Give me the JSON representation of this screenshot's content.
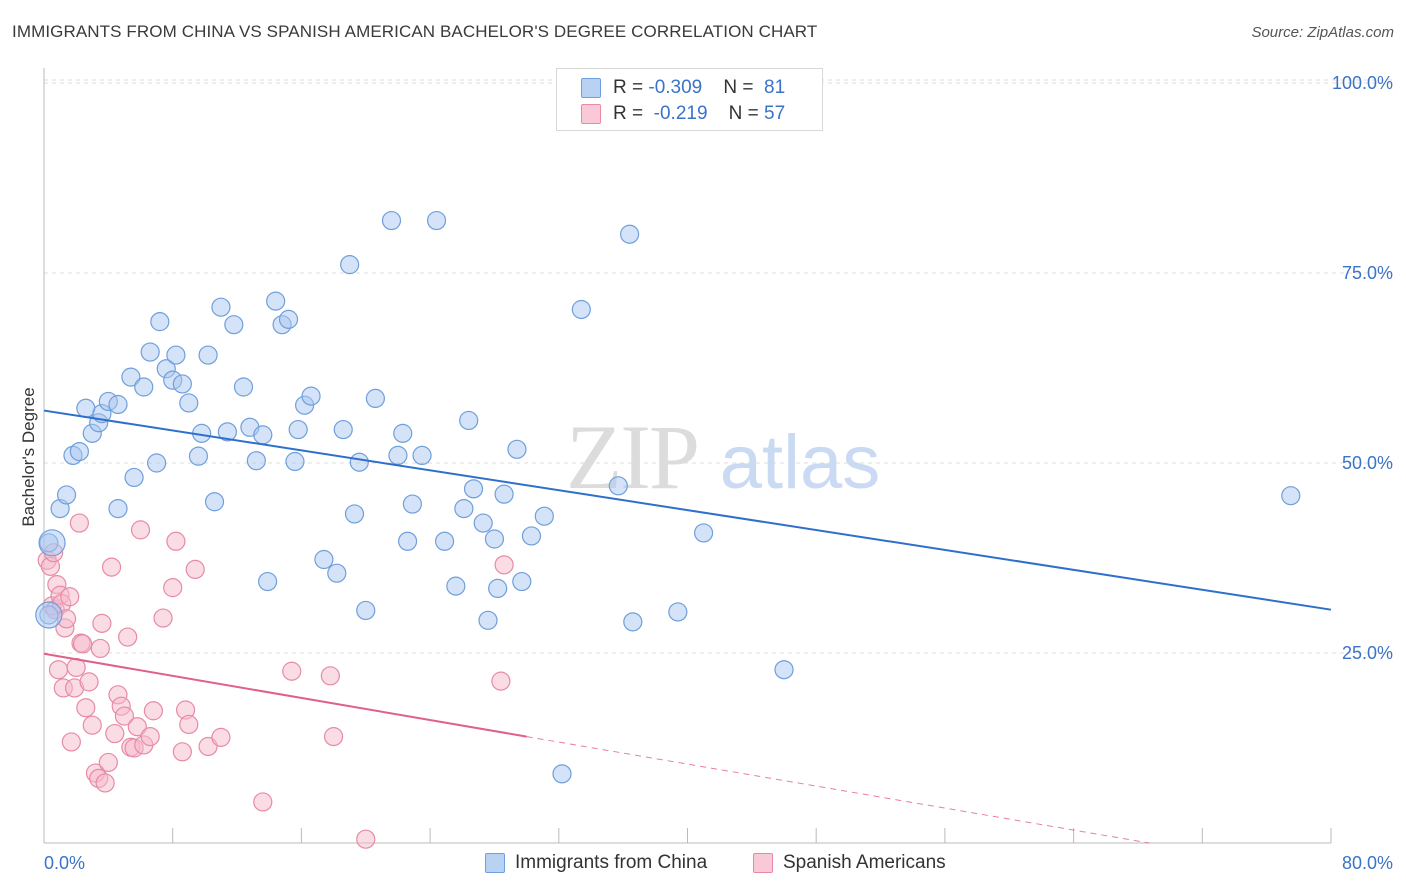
{
  "title": "IMMIGRANTS FROM CHINA VS SPANISH AMERICAN BACHELOR'S DEGREE CORRELATION CHART",
  "source": "Source: ZipAtlas.com",
  "watermark": {
    "zip": "ZIP",
    "atlas": "atlas"
  },
  "colors": {
    "blue_fill": "#a9c8f0",
    "blue_stroke": "#6f9fdc",
    "blue_line": "#2f6fcc",
    "pink_fill": "#f6b9cc",
    "pink_stroke": "#e88aa6",
    "pink_line": "#e0608a",
    "grid": "#dcdcdc",
    "axis_text": "#3a73c8"
  },
  "legend_top": {
    "row1": {
      "r_label": "R = ",
      "r_value": "-0.309",
      "n_label": "N = ",
      "n_value": "81"
    },
    "row2": {
      "r_label": "R = ",
      "r_value": "-0.219",
      "n_label": "N = ",
      "n_value": "57"
    }
  },
  "chart_data": {
    "type": "scatter",
    "title": "IMMIGRANTS FROM CHINA VS SPANISH AMERICAN BACHELOR'S DEGREE CORRELATION CHART",
    "xlabel": "",
    "ylabel": "Bachelor's Degree",
    "xlim": [
      0,
      80
    ],
    "ylim": [
      0,
      100
    ],
    "x_tick_labels": {
      "left": "0.0%",
      "right": "80.0%"
    },
    "y_tick_labels": [
      {
        "value": 100,
        "label": "100.0%"
      },
      {
        "value": 75,
        "label": "75.0%"
      },
      {
        "value": 50,
        "label": "50.0%"
      },
      {
        "value": 25,
        "label": "25.0%"
      }
    ],
    "grid": true,
    "legend_position": "bottom-center",
    "series": [
      {
        "name": "Immigrants from China",
        "color": "blue",
        "R": -0.309,
        "N": 81,
        "trend": {
          "x0": 0,
          "y0": 56.9,
          "x1": 80,
          "y1": 30.7
        },
        "points": [
          [
            0.3,
            39.5
          ],
          [
            0.3,
            30.0
          ],
          [
            1.0,
            44.0
          ],
          [
            1.4,
            45.8
          ],
          [
            1.8,
            51.0
          ],
          [
            2.2,
            51.5
          ],
          [
            2.6,
            57.2
          ],
          [
            3.0,
            53.9
          ],
          [
            3.4,
            55.3
          ],
          [
            3.6,
            56.5
          ],
          [
            4.0,
            58.1
          ],
          [
            4.6,
            57.7
          ],
          [
            4.6,
            44.0
          ],
          [
            5.4,
            61.3
          ],
          [
            5.6,
            48.1
          ],
          [
            6.2,
            60.0
          ],
          [
            6.6,
            64.6
          ],
          [
            7.0,
            50.0
          ],
          [
            7.2,
            68.6
          ],
          [
            7.6,
            62.4
          ],
          [
            8.0,
            60.9
          ],
          [
            8.2,
            64.2
          ],
          [
            8.6,
            60.4
          ],
          [
            9.0,
            57.9
          ],
          [
            9.6,
            50.9
          ],
          [
            9.8,
            53.9
          ],
          [
            10.2,
            64.2
          ],
          [
            10.6,
            44.9
          ],
          [
            11.0,
            70.5
          ],
          [
            11.4,
            54.1
          ],
          [
            11.8,
            68.2
          ],
          [
            12.4,
            60.0
          ],
          [
            12.8,
            54.7
          ],
          [
            13.2,
            50.3
          ],
          [
            13.6,
            53.7
          ],
          [
            13.9,
            34.4
          ],
          [
            14.4,
            71.3
          ],
          [
            14.8,
            68.2
          ],
          [
            15.2,
            68.9
          ],
          [
            15.6,
            50.2
          ],
          [
            15.8,
            54.4
          ],
          [
            16.2,
            57.6
          ],
          [
            16.6,
            58.8
          ],
          [
            17.4,
            37.3
          ],
          [
            18.2,
            35.5
          ],
          [
            18.6,
            54.4
          ],
          [
            19.0,
            76.1
          ],
          [
            19.3,
            43.3
          ],
          [
            19.6,
            50.1
          ],
          [
            20.0,
            30.6
          ],
          [
            20.6,
            58.5
          ],
          [
            21.6,
            81.9
          ],
          [
            22.0,
            51.0
          ],
          [
            22.3,
            53.9
          ],
          [
            22.6,
            39.7
          ],
          [
            22.9,
            44.6
          ],
          [
            23.5,
            51.0
          ],
          [
            24.4,
            81.9
          ],
          [
            24.9,
            39.7
          ],
          [
            25.6,
            33.8
          ],
          [
            26.1,
            44.0
          ],
          [
            26.4,
            55.6
          ],
          [
            26.7,
            46.6
          ],
          [
            27.3,
            42.1
          ],
          [
            27.6,
            29.3
          ],
          [
            28.0,
            40.0
          ],
          [
            28.2,
            33.5
          ],
          [
            28.6,
            45.9
          ],
          [
            29.4,
            51.8
          ],
          [
            29.7,
            34.4
          ],
          [
            30.3,
            40.4
          ],
          [
            31.1,
            43.0
          ],
          [
            32.2,
            9.1
          ],
          [
            33.4,
            70.2
          ],
          [
            35.7,
            47.0
          ],
          [
            36.4,
            80.1
          ],
          [
            36.6,
            29.1
          ],
          [
            39.4,
            30.4
          ],
          [
            41.0,
            40.8
          ],
          [
            46.0,
            22.8
          ],
          [
            77.5,
            45.7
          ]
        ]
      },
      {
        "name": "Spanish Americans",
        "color": "pink",
        "R": -0.219,
        "N": 57,
        "trend": {
          "x0": 0,
          "y0": 24.9,
          "x1": 30,
          "y1": 14.0
        },
        "trend_dashed": {
          "x0": 30,
          "y0": 14.0,
          "x1": 68.7,
          "y1": 0.0
        },
        "points": [
          [
            0.2,
            37.2
          ],
          [
            0.4,
            36.4
          ],
          [
            0.5,
            31.2
          ],
          [
            0.6,
            38.2
          ],
          [
            0.7,
            30.7
          ],
          [
            0.8,
            34.0
          ],
          [
            0.9,
            22.8
          ],
          [
            1.0,
            32.6
          ],
          [
            1.1,
            31.5
          ],
          [
            1.2,
            20.4
          ],
          [
            1.3,
            28.3
          ],
          [
            1.4,
            29.5
          ],
          [
            1.6,
            32.4
          ],
          [
            1.7,
            13.3
          ],
          [
            1.9,
            20.4
          ],
          [
            2.0,
            23.1
          ],
          [
            2.2,
            42.1
          ],
          [
            2.3,
            26.3
          ],
          [
            2.4,
            26.2
          ],
          [
            2.6,
            17.8
          ],
          [
            2.8,
            21.2
          ],
          [
            3.0,
            15.5
          ],
          [
            3.2,
            9.2
          ],
          [
            3.4,
            8.5
          ],
          [
            3.5,
            25.6
          ],
          [
            3.6,
            28.9
          ],
          [
            3.8,
            7.9
          ],
          [
            4.0,
            10.6
          ],
          [
            4.2,
            36.3
          ],
          [
            4.4,
            14.4
          ],
          [
            4.6,
            19.5
          ],
          [
            4.8,
            18.0
          ],
          [
            5.0,
            16.7
          ],
          [
            5.2,
            27.1
          ],
          [
            5.4,
            12.6
          ],
          [
            5.6,
            12.5
          ],
          [
            5.8,
            15.3
          ],
          [
            6.0,
            41.2
          ],
          [
            6.2,
            12.9
          ],
          [
            6.6,
            14.0
          ],
          [
            6.8,
            17.4
          ],
          [
            7.4,
            29.6
          ],
          [
            8.0,
            33.6
          ],
          [
            8.2,
            39.7
          ],
          [
            8.6,
            12.0
          ],
          [
            8.8,
            17.5
          ],
          [
            9.0,
            15.6
          ],
          [
            9.4,
            36.0
          ],
          [
            10.2,
            12.7
          ],
          [
            11.0,
            13.9
          ],
          [
            13.6,
            5.4
          ],
          [
            15.4,
            22.6
          ],
          [
            17.8,
            22.0
          ],
          [
            18.0,
            14.0
          ],
          [
            20.0,
            0.5
          ],
          [
            28.4,
            21.3
          ],
          [
            28.6,
            36.6
          ]
        ]
      }
    ]
  },
  "legend_bottom": {
    "series1_label": "Immigrants from China",
    "series2_label": "Spanish Americans"
  }
}
